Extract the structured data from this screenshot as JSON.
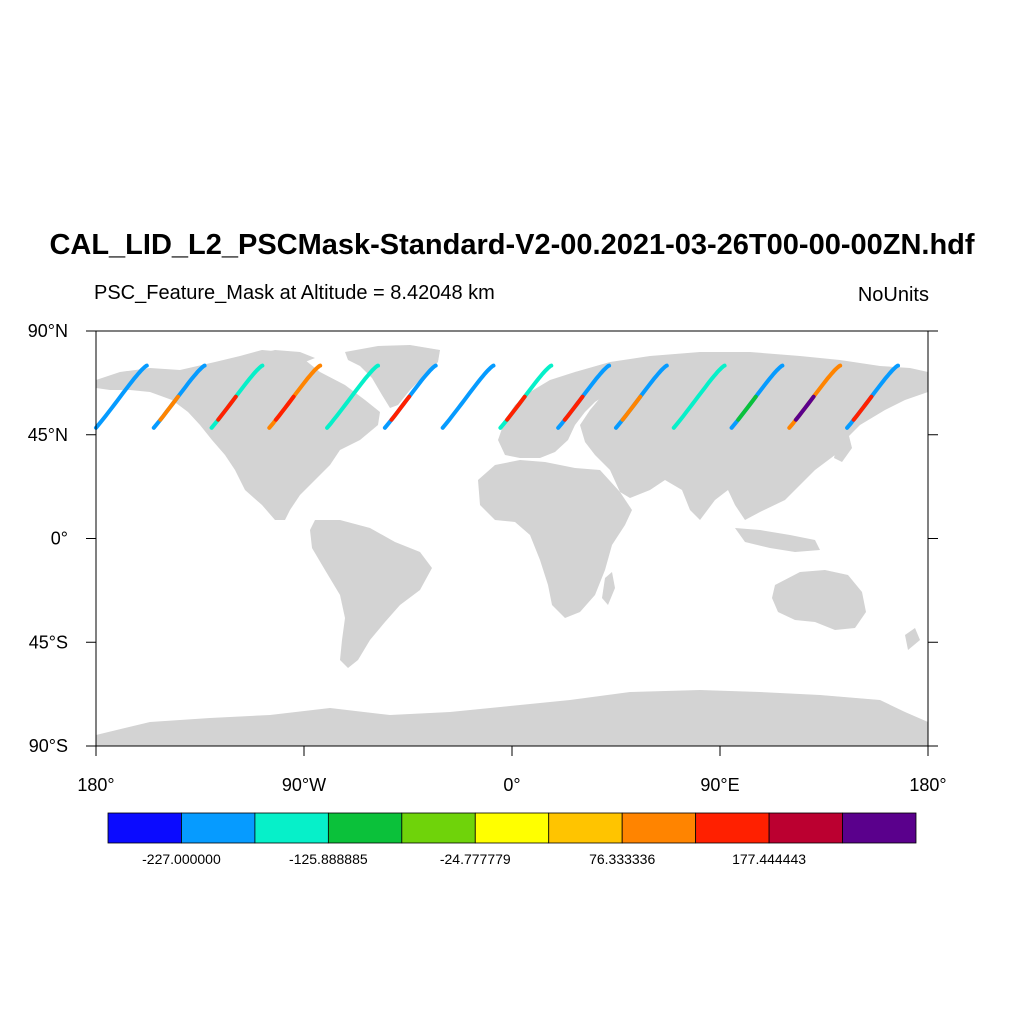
{
  "title": "CAL_LID_L2_PSCMask-Standard-V2-00.2021-03-26T00-00-00ZN.hdf",
  "subtitle": "PSC_Feature_Mask at Altitude = 8.42048 km",
  "units": "NoUnits",
  "chart_data": {
    "type": "map",
    "projection": "cylindrical-equidistant",
    "lon_range": [
      -180,
      180
    ],
    "lat_range": [
      -90,
      90
    ],
    "lat_ticks": [
      {
        "value": 90,
        "label": "90°N"
      },
      {
        "value": 45,
        "label": "45°N"
      },
      {
        "value": 0,
        "label": "0°"
      },
      {
        "value": -45,
        "label": "45°S"
      },
      {
        "value": -90,
        "label": "90°S"
      }
    ],
    "lon_ticks": [
      {
        "value": -180,
        "label": "180°"
      },
      {
        "value": -90,
        "label": "90°W"
      },
      {
        "value": 0,
        "label": "0°"
      },
      {
        "value": 90,
        "label": "90°E"
      },
      {
        "value": 180,
        "label": "180°"
      }
    ],
    "land_color": "#d3d3d3",
    "colorbar": {
      "colors": [
        "#0b0bff",
        "#069bff",
        "#06f0c9",
        "#0bc13a",
        "#6fd30a",
        "#ffff00",
        "#ffc400",
        "#ff8400",
        "#ff2000",
        "#bb0030",
        "#5a008c"
      ],
      "labels": [
        "-227.000000",
        "-125.888885",
        "-24.777779",
        "76.333336",
        "177.444443"
      ],
      "label_positions": [
        1,
        3,
        5,
        7,
        9
      ]
    },
    "orbit_tracks": [
      {
        "start_lon": -180,
        "dominant_color": "#069bff"
      },
      {
        "start_lon": -155,
        "dominant_color": "#069bff",
        "accent_color": "#ff8400"
      },
      {
        "start_lon": -130,
        "dominant_color": "#06f0c9",
        "accent_color": "#ff2000"
      },
      {
        "start_lon": -105,
        "dominant_color": "#ff8400",
        "accent_color": "#ff2000"
      },
      {
        "start_lon": -80,
        "dominant_color": "#06f0c9"
      },
      {
        "start_lon": -55,
        "dominant_color": "#069bff",
        "accent_color": "#ff2000"
      },
      {
        "start_lon": -30,
        "dominant_color": "#069bff"
      },
      {
        "start_lon": -5,
        "dominant_color": "#06f0c9",
        "accent_color": "#ff2000"
      },
      {
        "start_lon": 20,
        "dominant_color": "#069bff",
        "accent_color": "#ff2000"
      },
      {
        "start_lon": 45,
        "dominant_color": "#069bff",
        "accent_color": "#ff8400"
      },
      {
        "start_lon": 70,
        "dominant_color": "#06f0c9"
      },
      {
        "start_lon": 95,
        "dominant_color": "#069bff",
        "accent_color": "#0bc13a"
      },
      {
        "start_lon": 120,
        "dominant_color": "#ff8400",
        "accent_color": "#5a008c"
      },
      {
        "start_lon": 145,
        "dominant_color": "#069bff",
        "accent_color": "#ff2000"
      }
    ],
    "track_lat_range": [
      48,
      75
    ],
    "track_lon_span": 22
  }
}
